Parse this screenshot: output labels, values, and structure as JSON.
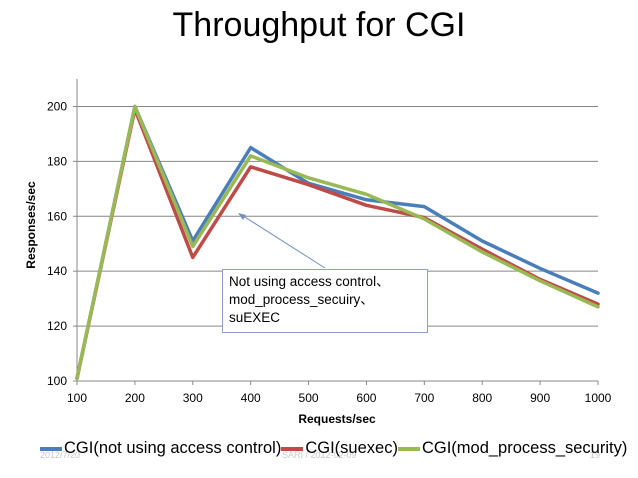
{
  "slide": {
    "title": "Throughput for CGI",
    "footer_left": "2012/7/20",
    "footer_center": "SARI / 2012-02-09",
    "footer_right": "19"
  },
  "annotation": {
    "lines": [
      "Not using access control、",
      "mod_process_secuiry、",
      "suEXEC"
    ]
  },
  "chart_data": {
    "type": "line",
    "title": "Throughput for CGI",
    "xlabel": "Requests/sec",
    "ylabel": "Responses/sec",
    "x": [
      100,
      200,
      300,
      400,
      500,
      600,
      700,
      800,
      900,
      1000
    ],
    "xlim": [
      100,
      1000
    ],
    "ylim": [
      100,
      210
    ],
    "yticks": [
      100,
      120,
      140,
      160,
      180,
      200
    ],
    "grid": true,
    "legend_position": "bottom",
    "series": [
      {
        "name": "CGI(not using access control)",
        "color": "#4a7ebb",
        "values": [
          101,
          200,
          151,
          185,
          172,
          166,
          163.5,
          151,
          141,
          132
        ]
      },
      {
        "name": "CGI(suexec)",
        "color": "#be4b48",
        "values": [
          101,
          199,
          145,
          178,
          171.5,
          164,
          159.5,
          148,
          137,
          128
        ]
      },
      {
        "name": "CGI(mod_process_security)",
        "color": "#98b954",
        "values": [
          101,
          200,
          149,
          182,
          174,
          168,
          159,
          147,
          136.5,
          127
        ]
      }
    ]
  }
}
